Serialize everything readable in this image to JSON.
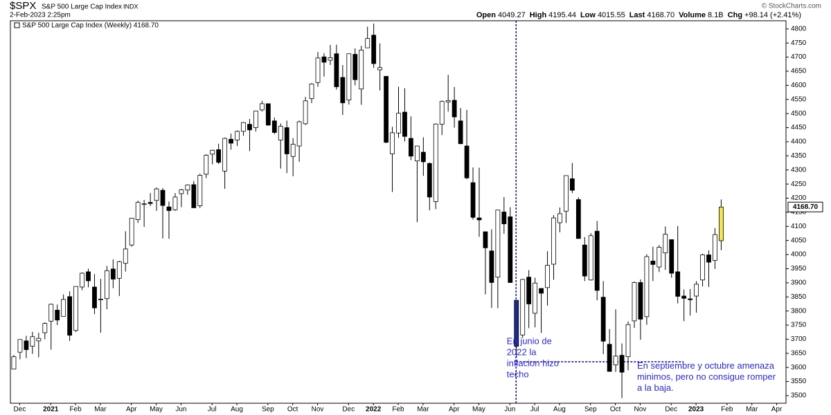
{
  "header": {
    "symbol": "$SPX",
    "name": "S&P 500 Large Cap Index",
    "exchange": "INDX",
    "date": "2-Feb-2023 2:25pm",
    "quote": [
      {
        "label": "Open",
        "value": "4049.27"
      },
      {
        "label": "High",
        "value": "4195.44"
      },
      {
        "label": "Low",
        "value": "4015.55"
      },
      {
        "label": "Last",
        "value": "4168.70"
      },
      {
        "label": "Volume",
        "value": "8.1B"
      },
      {
        "label": "Chg",
        "value": "+98.14 (+2.41%)"
      }
    ],
    "copyright": "© StockCharts.com"
  },
  "chart_data": {
    "type": "candlestick",
    "legend": "S&P 500 Large Cap Index (Weekly) 4168.70",
    "price_tag": "4168.70",
    "up_color": "#ffffff",
    "down_color": "#000000",
    "highlights": [
      {
        "index": 81,
        "color": "#1e2a8a"
      },
      {
        "index": 114,
        "color": "#f3e64a"
      }
    ],
    "open": [
      3594,
      3654,
      3694,
      3675,
      3694,
      3723,
      3764,
      3803,
      3781,
      3851,
      3731,
      3885,
      3939,
      3885,
      3842,
      3844,
      3949,
      3916,
      3969,
      4034,
      4124,
      4179,
      4185,
      4192,
      4228,
      4169,
      4159,
      4216,
      4229,
      4248,
      4173,
      4285,
      4356,
      4372,
      4296,
      4409,
      4406,
      4437,
      4462,
      4450,
      4513,
      4535,
      4474,
      4406,
      4450,
      4348,
      4385,
      4464,
      4553,
      4610,
      4701,
      4689,
      4712,
      4628,
      4548,
      4710,
      4587,
      4733,
      4778,
      4655,
      4632,
      4357,
      4431,
      4505,
      4412,
      4332,
      4363,
      4323,
      4188,
      4462,
      4541,
      4547,
      4474,
      4385,
      4255,
      4130,
      4081,
      4013,
      3920,
      4151,
      4134,
      3838,
      3715,
      3920,
      3792,
      3880,
      3883,
      3966,
      4113,
      4154,
      4269,
      4195,
      4034,
      3910,
      4083,
      3849,
      3682,
      3609,
      3643,
      3638,
      3765,
      3901,
      3780,
      3977,
      3956,
      4006,
      4053,
      3939,
      3853,
      3843,
      3853,
      3910,
      3999,
      3979,
      4049.27
    ],
    "high": [
      3644,
      3699,
      3712,
      3726,
      3723,
      3760,
      3826,
      3823,
      3859,
      3870,
      3887,
      3937,
      3950,
      3931,
      3914,
      3960,
      3983,
      3978,
      4083,
      4130,
      4191,
      4194,
      4218,
      4238,
      4236,
      4188,
      4218,
      4233,
      4249,
      4261,
      4287,
      4356,
      4372,
      4393,
      4415,
      4429,
      4440,
      4470,
      4481,
      4510,
      4545,
      4535,
      4486,
      4465,
      4475,
      4413,
      4475,
      4559,
      4608,
      4718,
      4714,
      4743,
      4744,
      4672,
      4713,
      4731,
      4740,
      4808,
      4819,
      4749,
      4632,
      4453,
      4595,
      4590,
      4490,
      4385,
      4416,
      4327,
      4465,
      4546,
      4637,
      4594,
      4520,
      4513,
      4309,
      4308,
      4081,
      4090,
      4158,
      4204,
      4168,
      3838,
      3914,
      3945,
      3918,
      3880,
      4012,
      4140,
      4167,
      4280,
      4325,
      4203,
      4062,
      4076,
      4119,
      3906,
      3736,
      3806,
      3685,
      3763,
      3905,
      3912,
      4001,
      4028,
      4034,
      4100,
      4053,
      4101,
      3876,
      3878,
      3906,
      4003,
      4015,
      4094,
      4195.44
    ],
    "low": [
      3594,
      3629,
      3633,
      3648,
      3636,
      3700,
      3663,
      3750,
      3781,
      3694,
      3725,
      3874,
      3884,
      3789,
      3723,
      3806,
      3881,
      3853,
      3940,
      4028,
      4112,
      4098,
      4172,
      4155,
      4057,
      4056,
      4155,
      4168,
      4212,
      4165,
      4165,
      4271,
      4320,
      4321,
      4233,
      4372,
      4385,
      4421,
      4367,
      4436,
      4507,
      4457,
      4427,
      4305,
      4289,
      4278,
      4329,
      4459,
      4537,
      4595,
      4631,
      4672,
      4585,
      4495,
      4532,
      4600,
      4531,
      4733,
      4662,
      4582,
      4395,
      4222,
      4414,
      4401,
      4335,
      4115,
      4279,
      4157,
      4161,
      4424,
      4507,
      4450,
      4392,
      4267,
      4124,
      4063,
      3859,
      3811,
      3810,
      4074,
      3900,
      3636,
      3705,
      3739,
      3742,
      3722,
      3819,
      3911,
      4079,
      4112,
      4218,
      4057,
      3906,
      3908,
      3838,
      3647,
      3584,
      3584,
      3491,
      3590,
      3740,
      3698,
      3751,
      3906,
      3938,
      3946,
      3918,
      3827,
      3764,
      3784,
      3794,
      3887,
      3885,
      3949,
      4015.55
    ],
    "close": [
      3638,
      3699,
      3663,
      3709,
      3703,
      3756,
      3824,
      3768,
      3841,
      3714,
      3887,
      3934,
      3907,
      3811,
      3842,
      3943,
      3913,
      3975,
      4020,
      4129,
      4185,
      4180,
      4181,
      4233,
      4174,
      4156,
      4204,
      4230,
      4247,
      4166,
      4281,
      4352,
      4370,
      4327,
      4412,
      4395,
      4437,
      4468,
      4442,
      4509,
      4535,
      4459,
      4433,
      4455,
      4357,
      4391,
      4471,
      4545,
      4605,
      4697,
      4682,
      4698,
      4595,
      4538,
      4712,
      4620,
      4725,
      4766,
      4677,
      4663,
      4398,
      4432,
      4501,
      4419,
      4349,
      4385,
      4329,
      4204,
      4463,
      4543,
      4546,
      4488,
      4393,
      4272,
      4132,
      4123,
      4024,
      3901,
      4158,
      4109,
      3901,
      3675,
      3912,
      3825,
      3899,
      3863,
      3962,
      4130,
      4145,
      4280,
      4228,
      4057,
      3924,
      4067,
      3873,
      3693,
      3586,
      3640,
      3583,
      3752,
      3901,
      3771,
      3993,
      3965,
      4026,
      4072,
      3934,
      3852,
      3845,
      3840,
      3895,
      3999,
      3973,
      4071,
      4168.7
    ],
    "xlim": [
      -0.5,
      124.5
    ],
    "xticks": [
      {
        "value": 1,
        "label": "Dec"
      },
      {
        "value": 6,
        "label": "2021"
      },
      {
        "value": 10,
        "label": "Feb"
      },
      {
        "value": 14,
        "label": "Mar"
      },
      {
        "value": 19,
        "label": "Apr"
      },
      {
        "value": 23,
        "label": "May"
      },
      {
        "value": 27,
        "label": "Jun"
      },
      {
        "value": 32,
        "label": "Jul"
      },
      {
        "value": 36,
        "label": "Aug"
      },
      {
        "value": 41,
        "label": "Sep"
      },
      {
        "value": 45,
        "label": "Oct"
      },
      {
        "value": 49,
        "label": "Nov"
      },
      {
        "value": 54,
        "label": "Dec"
      },
      {
        "value": 58,
        "label": "2022"
      },
      {
        "value": 62,
        "label": "Feb"
      },
      {
        "value": 66,
        "label": "Mar"
      },
      {
        "value": 71,
        "label": "Apr"
      },
      {
        "value": 75,
        "label": "May"
      },
      {
        "value": 80,
        "label": "Jun"
      },
      {
        "value": 84,
        "label": "Jul"
      },
      {
        "value": 88,
        "label": "Aug"
      },
      {
        "value": 93,
        "label": "Sep"
      },
      {
        "value": 97,
        "label": "Oct"
      },
      {
        "value": 101,
        "label": "Nov"
      },
      {
        "value": 106,
        "label": "Dec"
      },
      {
        "value": 110,
        "label": "2023"
      },
      {
        "value": 115,
        "label": "Feb"
      },
      {
        "value": 119,
        "label": "Mar"
      },
      {
        "value": 123,
        "label": "Apr"
      }
    ],
    "ylim": [
      3473,
      4829
    ],
    "yticks": [
      3500,
      3550,
      3600,
      3650,
      3700,
      3750,
      3800,
      3850,
      3900,
      3950,
      4000,
      4050,
      4100,
      4150,
      4200,
      4250,
      4300,
      4350,
      4400,
      4450,
      4500,
      4550,
      4600,
      4650,
      4700,
      4750,
      4800
    ],
    "grid": false,
    "vline": {
      "x": 81,
      "color": "#1a1aa0"
    },
    "hline": {
      "y": 3620,
      "x": [
        81,
        108
      ],
      "color": "#1a1aa0"
    },
    "annotations": [
      {
        "x": 79.5,
        "y": 3690,
        "color": "#2a2acc",
        "lines": [
          "En junio de",
          "2022 la",
          "inflacion hizo",
          "techo"
        ]
      },
      {
        "x": 100.5,
        "y": 3603,
        "color": "#2a2acc",
        "lines": [
          "En septiembre y octubre amenaza",
          "minimos, pero no consigue romper",
          "a la baja."
        ]
      }
    ]
  }
}
